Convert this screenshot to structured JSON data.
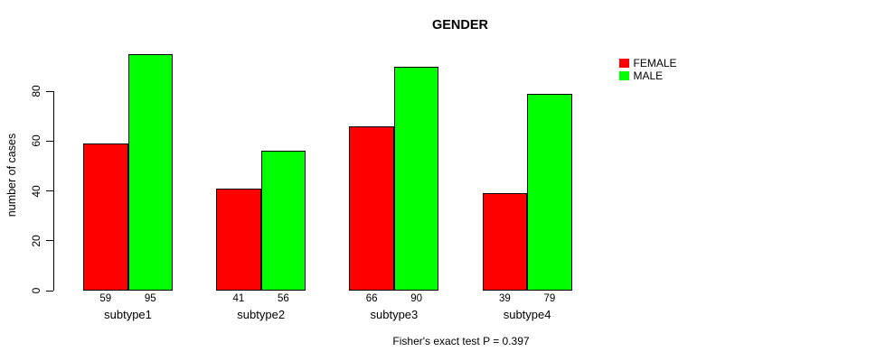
{
  "chart_data": {
    "type": "bar",
    "title": "GENDER",
    "xlabel": "",
    "ylabel": "number of cases",
    "annotation": "Fisher's exact test P = 0.397",
    "categories": [
      "subtype1",
      "subtype2",
      "subtype3",
      "subtype4"
    ],
    "series": [
      {
        "name": "FEMALE",
        "color": "#FF0000",
        "values": [
          59,
          41,
          66,
          39
        ]
      },
      {
        "name": "MALE",
        "color": "#00FF00",
        "values": [
          95,
          56,
          90,
          79
        ]
      }
    ],
    "ylim": [
      0,
      95
    ],
    "yticks": [
      0,
      20,
      40,
      60,
      80
    ],
    "grid": false,
    "bar_value_labels": true,
    "legend_position": "right",
    "colors": {
      "axis": "#000000",
      "bar_border": "#000000",
      "text": "#000000",
      "background": "#FFFFFF"
    }
  }
}
